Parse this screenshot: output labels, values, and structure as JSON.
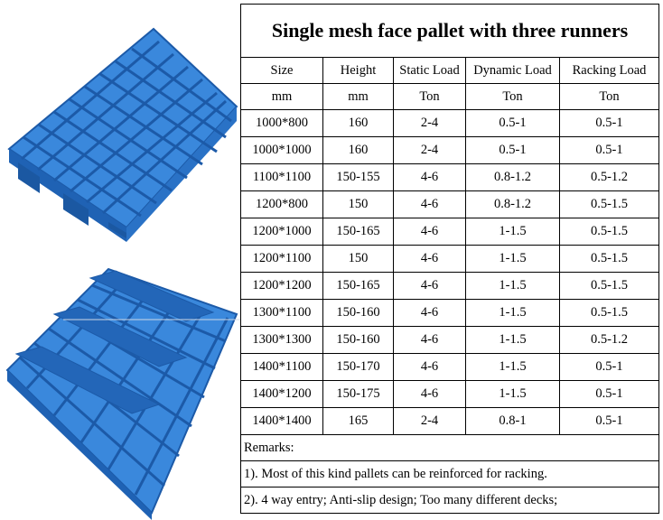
{
  "title": "Single mesh face pallet with three runners",
  "headers": [
    "Size",
    "Height",
    "Static Load",
    "Dynamic Load",
    "Racking Load"
  ],
  "units": [
    "mm",
    "mm",
    "Ton",
    "Ton",
    "Ton"
  ],
  "rows": [
    [
      "1000*800",
      "160",
      "2-4",
      "0.5-1",
      "0.5-1"
    ],
    [
      "1000*1000",
      "160",
      "2-4",
      "0.5-1",
      "0.5-1"
    ],
    [
      "1100*1100",
      "150-155",
      "4-6",
      "0.8-1.2",
      "0.5-1.2"
    ],
    [
      "1200*800",
      "150",
      "4-6",
      "0.8-1.2",
      "0.5-1.5"
    ],
    [
      "1200*1000",
      "150-165",
      "4-6",
      "1-1.5",
      "0.5-1.5"
    ],
    [
      "1200*1100",
      "150",
      "4-6",
      "1-1.5",
      "0.5-1.5"
    ],
    [
      "1200*1200",
      "150-165",
      "4-6",
      "1-1.5",
      "0.5-1.5"
    ],
    [
      "1300*1100",
      "150-160",
      "4-6",
      "1-1.5",
      "0.5-1.5"
    ],
    [
      "1300*1300",
      "150-160",
      "4-6",
      "1-1.5",
      "0.5-1.2"
    ],
    [
      "1400*1100",
      "150-170",
      "4-6",
      "1-1.5",
      "0.5-1"
    ],
    [
      "1400*1200",
      "150-175",
      "4-6",
      "1-1.5",
      "0.5-1"
    ],
    [
      "1400*1400",
      "165",
      "2-4",
      "0.8-1",
      "0.5-1"
    ]
  ],
  "remarks": {
    "label": "Remarks:",
    "items": [
      "1). Most of this kind pallets can be reinforced for racking.",
      "2). 4 way entry; Anti-slip design; Too many different decks;"
    ]
  },
  "colors": {
    "pallet_blue": "#2f7fd6",
    "pallet_dark": "#1c5aa8",
    "pallet_light": "#5aa2ea"
  }
}
